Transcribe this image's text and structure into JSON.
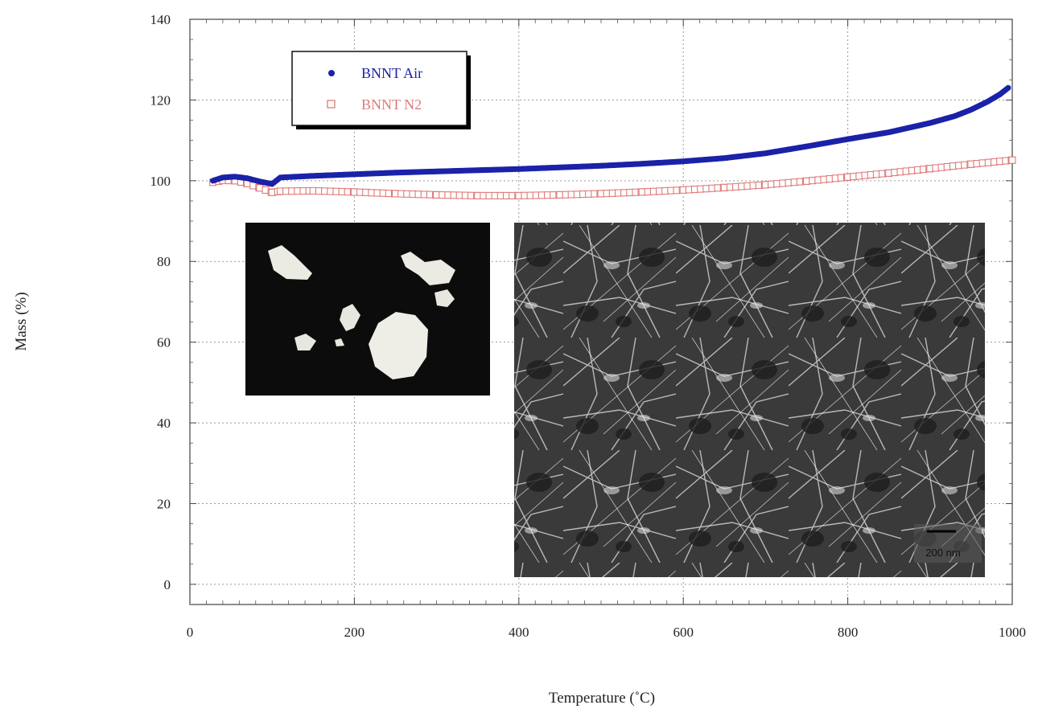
{
  "chart_data": {
    "type": "scatter",
    "xlabel": "Temperature (˚C)",
    "ylabel": "Mass (%)",
    "xlim": [
      0,
      1000
    ],
    "ylim": [
      -5,
      140
    ],
    "x_ticks": [
      0,
      200,
      400,
      600,
      800,
      1000
    ],
    "y_ticks": [
      0,
      20,
      40,
      60,
      80,
      100,
      120,
      140
    ],
    "grid": true,
    "legend_position": "top-left",
    "series": [
      {
        "name": "BNNT Air",
        "marker": "filled-circle",
        "color": "#1a22a8",
        "points": [
          [
            28,
            100
          ],
          [
            40,
            100.8
          ],
          [
            55,
            101
          ],
          [
            70,
            100.6
          ],
          [
            85,
            99.8
          ],
          [
            100,
            99.2
          ],
          [
            110,
            100.8
          ],
          [
            150,
            101.2
          ],
          [
            200,
            101.6
          ],
          [
            250,
            102
          ],
          [
            300,
            102.3
          ],
          [
            350,
            102.6
          ],
          [
            400,
            102.9
          ],
          [
            450,
            103.3
          ],
          [
            500,
            103.7
          ],
          [
            550,
            104.2
          ],
          [
            600,
            104.8
          ],
          [
            650,
            105.6
          ],
          [
            700,
            106.8
          ],
          [
            750,
            108.5
          ],
          [
            800,
            110.3
          ],
          [
            850,
            112
          ],
          [
            900,
            114.3
          ],
          [
            930,
            116
          ],
          [
            950,
            117.6
          ],
          [
            970,
            119.6
          ],
          [
            985,
            121.4
          ],
          [
            995,
            123
          ]
        ]
      },
      {
        "name": "BNNT N2",
        "marker": "open-square",
        "color": "#e07a7a",
        "points": [
          [
            28,
            99.6
          ],
          [
            40,
            100.1
          ],
          [
            55,
            100
          ],
          [
            70,
            99.3
          ],
          [
            85,
            98.2
          ],
          [
            100,
            97.1
          ],
          [
            110,
            97.4
          ],
          [
            150,
            97.5
          ],
          [
            200,
            97.2
          ],
          [
            250,
            96.8
          ],
          [
            300,
            96.5
          ],
          [
            350,
            96.3
          ],
          [
            400,
            96.3
          ],
          [
            450,
            96.5
          ],
          [
            500,
            96.8
          ],
          [
            550,
            97.2
          ],
          [
            600,
            97.7
          ],
          [
            650,
            98.3
          ],
          [
            700,
            99
          ],
          [
            750,
            99.9
          ],
          [
            800,
            100.9
          ],
          [
            850,
            101.9
          ],
          [
            900,
            103
          ],
          [
            950,
            104.1
          ],
          [
            1000,
            105.1
          ]
        ]
      }
    ],
    "insets": [
      {
        "kind": "photograph",
        "depicts": "white BNNT puffballs on black background"
      },
      {
        "kind": "micrograph",
        "depicts": "SEM image of boron nitride nanotube network",
        "scale_bar": "200 nm"
      }
    ]
  }
}
